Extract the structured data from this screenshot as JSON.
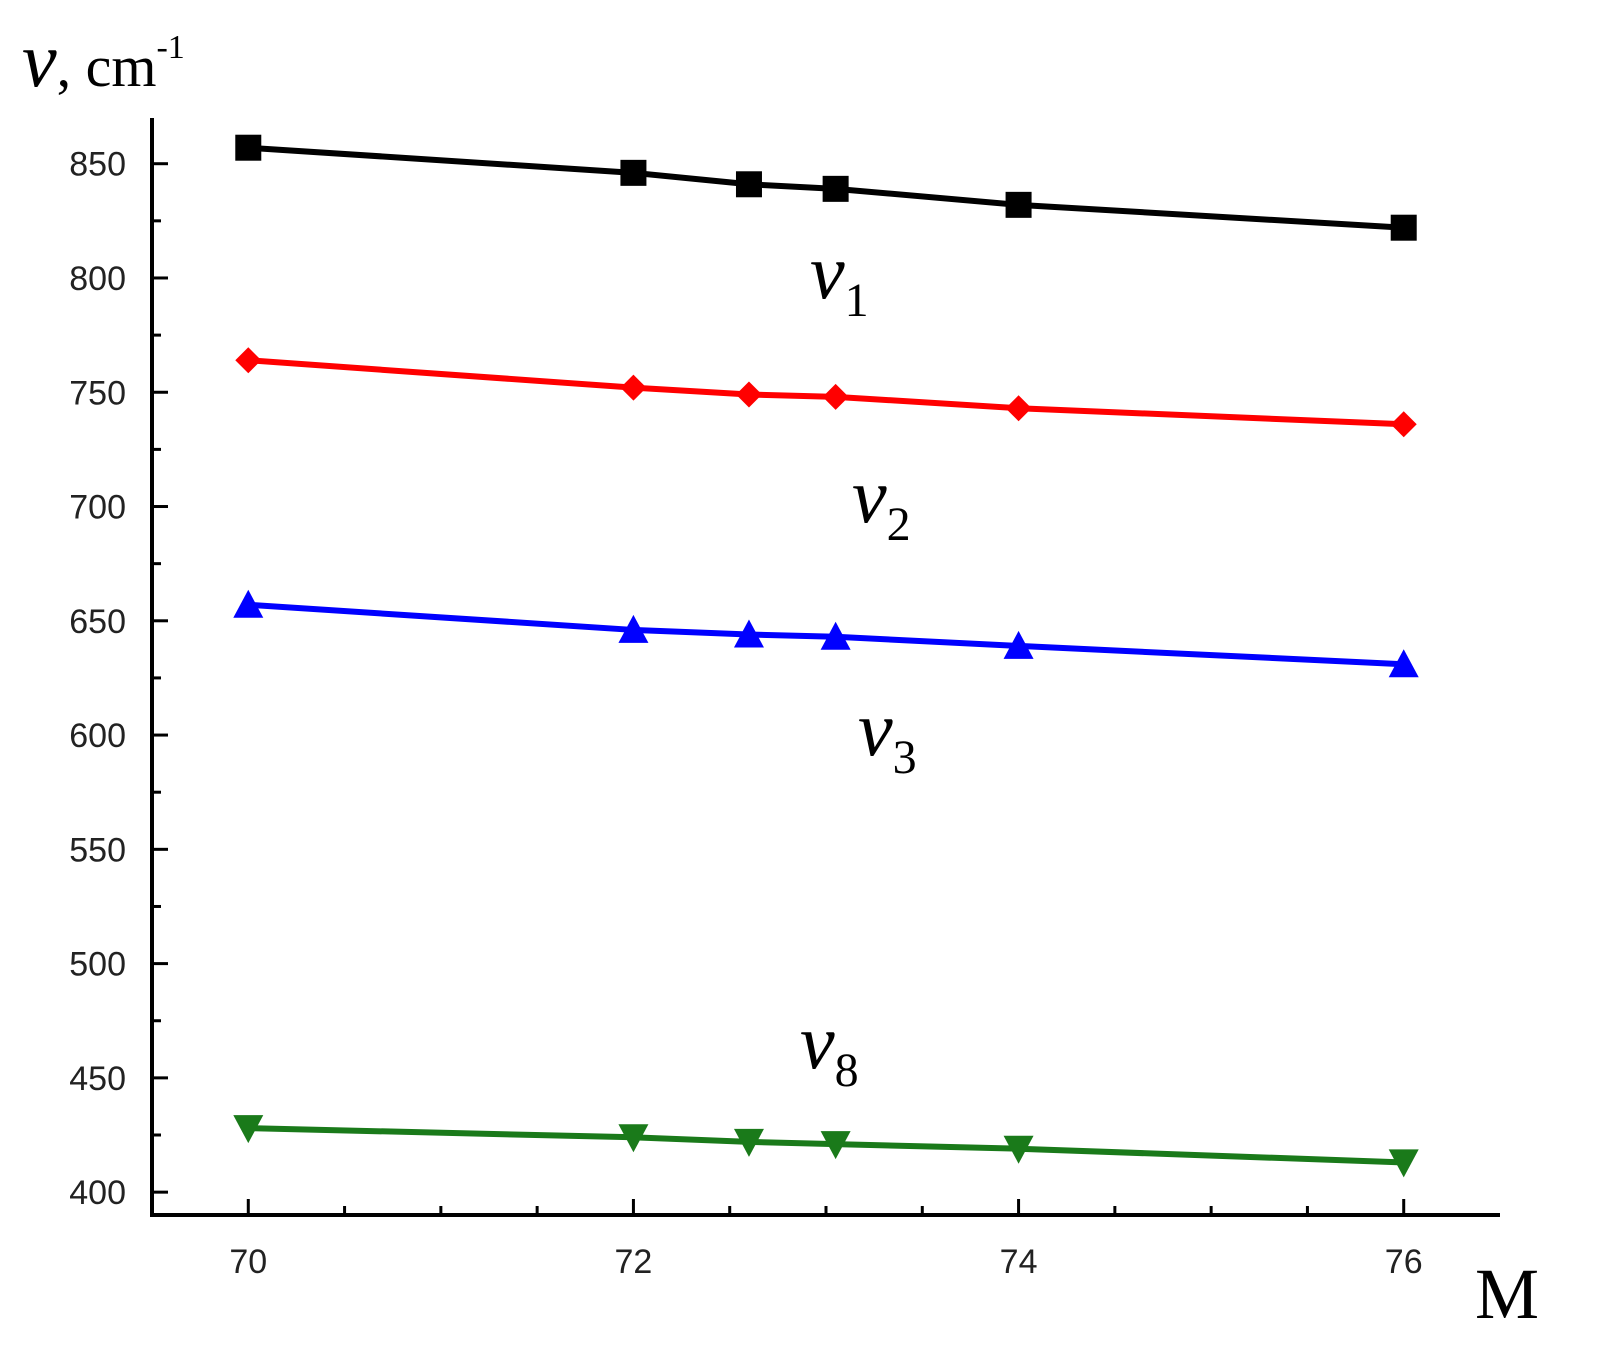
{
  "chart_data": {
    "type": "line",
    "title": "",
    "ylabel": {
      "symbol": "ν",
      "suffix": ", cm",
      "superscript": "-1"
    },
    "xlabel": "M",
    "xlim": [
      69.5,
      76.5
    ],
    "ylim": [
      390,
      870
    ],
    "x_ticks": [
      70,
      72,
      74,
      76
    ],
    "y_ticks": [
      400,
      450,
      500,
      550,
      600,
      650,
      700,
      750,
      800,
      850
    ],
    "x": [
      70,
      72,
      72.6,
      73.05,
      74,
      76
    ],
    "series": [
      {
        "name": "ν1",
        "label_symbol": "ν",
        "label_sub": "1",
        "color": "#000000",
        "marker": "square",
        "values": [
          857,
          846,
          841,
          839,
          832,
          822
        ]
      },
      {
        "name": "ν2",
        "label_symbol": "ν",
        "label_sub": "2",
        "color": "#ff0000",
        "marker": "diamond",
        "values": [
          764,
          752,
          749,
          748,
          743,
          736
        ]
      },
      {
        "name": "ν3",
        "label_symbol": "ν",
        "label_sub": "3",
        "color": "#0000ff",
        "marker": "triangle-up",
        "values": [
          657,
          646,
          644,
          643,
          639,
          631
        ]
      },
      {
        "name": "ν8",
        "label_symbol": "ν",
        "label_sub": "8",
        "color": "#1a7a1a",
        "marker": "triangle-down",
        "values": [
          428,
          424,
          422,
          421,
          419,
          413
        ]
      }
    ],
    "grid": false,
    "legend": "none"
  }
}
